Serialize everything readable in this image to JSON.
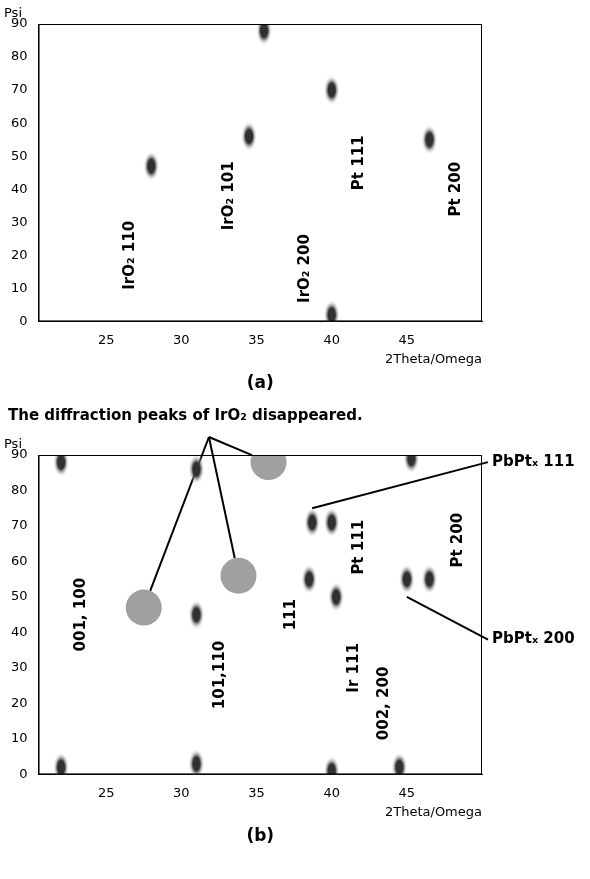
{
  "chart_data": [
    {
      "type": "scatter",
      "panel": "(a)",
      "x_label": "2Theta/Omega",
      "y_label": "Psi",
      "xlim": [
        20.5,
        50
      ],
      "xticks": [
        25,
        30,
        35,
        40,
        45
      ],
      "ylim": [
        0,
        90
      ],
      "yticks": [
        0,
        10,
        20,
        30,
        40,
        50,
        60,
        70,
        80,
        90
      ],
      "grid": false,
      "series": [
        {
          "x": [
            28,
            34.5,
            35.5,
            40,
            40,
            46.5
          ],
          "values": [
            47,
            56,
            88,
            70,
            2,
            55
          ],
          "color": "#303030",
          "marker": "ellipse"
        }
      ],
      "peak_labels": [
        {
          "text": "IrO₂ 110",
          "x": 26.6,
          "y": 20
        },
        {
          "text": "IrO₂ 101",
          "x": 33.2,
          "y": 38
        },
        {
          "text": "IrO₂ 200",
          "x": 38.2,
          "y": 16
        },
        {
          "text": "Pt 111",
          "x": 41.8,
          "y": 48
        },
        {
          "text": "Pt 200",
          "x": 48.3,
          "y": 40
        }
      ],
      "callouts": []
    },
    {
      "type": "scatter",
      "panel": "(b)",
      "title": "The diffraction peaks of IrO₂ disappeared.",
      "x_label": "2Theta/Omega",
      "y_label": "Psi",
      "xlim": [
        20.5,
        50
      ],
      "xticks": [
        25,
        30,
        35,
        40,
        45
      ],
      "ylim": [
        0,
        90
      ],
      "yticks": [
        0,
        10,
        20,
        30,
        40,
        50,
        60,
        70,
        80,
        90
      ],
      "grid": false,
      "series": [
        {
          "x": [
            22,
            22,
            31,
            31,
            31,
            38.5,
            38.7,
            40,
            40.3,
            40,
            44.5,
            45,
            46.5,
            45.3
          ],
          "values": [
            2,
            88,
            45,
            3,
            86,
            55,
            71,
            71,
            50,
            1,
            2,
            55,
            55,
            89
          ],
          "color": "#303030",
          "marker": "ellipse"
        },
        {
          "x": [
            27.5,
            33.8,
            35.8
          ],
          "values": [
            47,
            56,
            88
          ],
          "color": "#a0a0a0",
          "marker": "circle"
        }
      ],
      "peak_labels": [
        {
          "text": "001, 100",
          "x": 23.3,
          "y": 45
        },
        {
          "text": "101,110",
          "x": 32.6,
          "y": 28
        },
        {
          "text": "111",
          "x": 37.3,
          "y": 45
        },
        {
          "text": "Ir 111",
          "x": 41.5,
          "y": 30
        },
        {
          "text": "Pt 111",
          "x": 41.8,
          "y": 64
        },
        {
          "text": "002, 200",
          "x": 43.5,
          "y": 20
        },
        {
          "text": "Pt 200",
          "x": 48.4,
          "y": 66
        }
      ],
      "callouts": [
        {
          "text": "PbPtₓ 111",
          "x": 38.7,
          "y": 75,
          "label_y": 88
        },
        {
          "text": "PbPtₓ 200",
          "x": 45,
          "y": 50,
          "label_y": 38
        }
      ]
    }
  ]
}
